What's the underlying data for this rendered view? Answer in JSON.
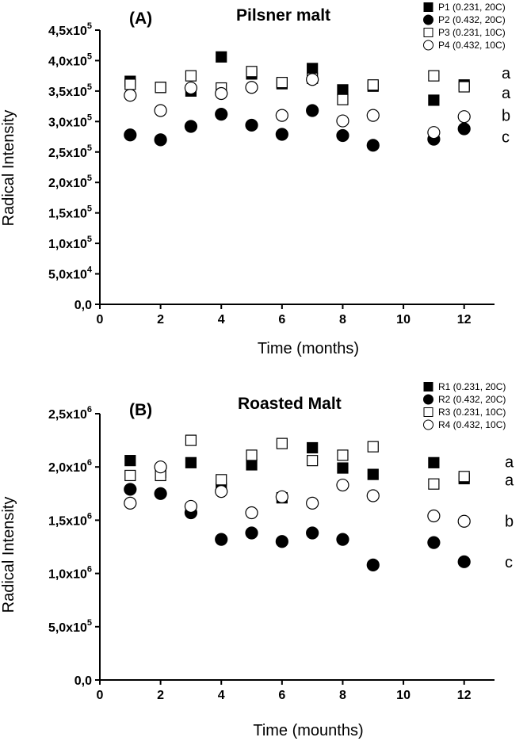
{
  "chart_data": [
    {
      "type": "scatter",
      "panel_label": "(A)",
      "title": "Pilsner malt",
      "xlabel": "Time (months)",
      "ylabel": "Radical Intensity",
      "xlim": [
        0,
        13
      ],
      "ylim": [
        0,
        450000
      ],
      "xticks": [
        0,
        2,
        4,
        6,
        8,
        10,
        12
      ],
      "yticks": [
        {
          "value": 0,
          "mant": "0,0",
          "exp": ""
        },
        {
          "value": 50000,
          "mant": "5,0x10",
          "exp": "4"
        },
        {
          "value": 100000,
          "mant": "1,0x10",
          "exp": "5"
        },
        {
          "value": 150000,
          "mant": "1,5x10",
          "exp": "5"
        },
        {
          "value": 200000,
          "mant": "2,0x10",
          "exp": "5"
        },
        {
          "value": 250000,
          "mant": "2,5x10",
          "exp": "5"
        },
        {
          "value": 300000,
          "mant": "3,0x10",
          "exp": "5"
        },
        {
          "value": 350000,
          "mant": "3,5x10",
          "exp": "5"
        },
        {
          "value": 400000,
          "mant": "4,0x10",
          "exp": "5"
        },
        {
          "value": 450000,
          "mant": "4,5x10",
          "exp": "5"
        }
      ],
      "legend_position": "top-right",
      "series": [
        {
          "name": "P1 (0.231, 20C)",
          "marker": "square",
          "filled": true,
          "x": [
            1,
            2,
            3,
            4,
            5,
            6,
            7,
            8,
            9,
            11,
            12
          ],
          "y": [
            366000,
            356000,
            350000,
            406000,
            378000,
            362000,
            387000,
            352000,
            358000,
            335000,
            360000
          ]
        },
        {
          "name": "P2 (0.432, 20C)",
          "marker": "circle",
          "filled": true,
          "x": [
            1,
            2,
            3,
            4,
            5,
            6,
            7,
            8,
            9,
            11,
            12
          ],
          "y": [
            278000,
            270000,
            292000,
            312000,
            294000,
            279000,
            318000,
            277000,
            261000,
            271000,
            288000
          ]
        },
        {
          "name": "P3 (0.231, 10C)",
          "marker": "square",
          "filled": false,
          "x": [
            1,
            2,
            3,
            4,
            5,
            6,
            7,
            8,
            9,
            11,
            12
          ],
          "y": [
            361000,
            356000,
            375000,
            355000,
            382000,
            364000,
            371000,
            336000,
            360000,
            375000,
            357000
          ]
        },
        {
          "name": "P4 (0.432, 10C)",
          "marker": "circle",
          "filled": false,
          "x": [
            1,
            2,
            3,
            4,
            5,
            6,
            7,
            8,
            9,
            11,
            12
          ],
          "y": [
            343000,
            318000,
            355000,
            346000,
            356000,
            310000,
            369000,
            301000,
            310000,
            282000,
            308000
          ]
        }
      ],
      "annotations": [
        {
          "text": "a",
          "value": 380000
        },
        {
          "text": "a",
          "value": 347000
        },
        {
          "text": "b",
          "value": 310000
        },
        {
          "text": "c",
          "value": 275000
        }
      ]
    },
    {
      "type": "scatter",
      "panel_label": "(B)",
      "title": "Roasted Malt",
      "xlabel": "Time (mounths)",
      "ylabel": "Radical Intensity",
      "xlim": [
        0,
        13
      ],
      "ylim": [
        0,
        2500000
      ],
      "xticks": [
        0,
        2,
        4,
        6,
        8,
        10,
        12
      ],
      "yticks": [
        {
          "value": 0,
          "mant": "0,0",
          "exp": ""
        },
        {
          "value": 500000,
          "mant": "5,0x10",
          "exp": "5"
        },
        {
          "value": 1000000,
          "mant": "1,0x10",
          "exp": "6"
        },
        {
          "value": 1500000,
          "mant": "1,5x10",
          "exp": "6"
        },
        {
          "value": 2000000,
          "mant": "2,0x10",
          "exp": "6"
        },
        {
          "value": 2500000,
          "mant": "2,5x10",
          "exp": "6"
        }
      ],
      "legend_position": "top-right",
      "series": [
        {
          "name": "R1 (0.231, 20C)",
          "marker": "square",
          "filled": true,
          "x": [
            1,
            2,
            3,
            4,
            5,
            6,
            7,
            8,
            9,
            11,
            12
          ],
          "y": [
            2060000,
            1950000,
            2040000,
            1800000,
            2020000,
            1710000,
            2180000,
            1990000,
            1930000,
            2040000,
            1890000
          ]
        },
        {
          "name": "R2 (0.432, 20C)",
          "marker": "circle",
          "filled": true,
          "x": [
            1,
            2,
            3,
            4,
            5,
            6,
            7,
            8,
            9,
            11,
            12
          ],
          "y": [
            1790000,
            1750000,
            1570000,
            1320000,
            1380000,
            1300000,
            1380000,
            1320000,
            1080000,
            1290000,
            1110000
          ]
        },
        {
          "name": "R3 (0.231, 10C)",
          "marker": "square",
          "filled": false,
          "x": [
            1,
            2,
            3,
            4,
            5,
            6,
            7,
            8,
            9,
            11,
            12
          ],
          "y": [
            1920000,
            1920000,
            2250000,
            1880000,
            2110000,
            2220000,
            2060000,
            2110000,
            2190000,
            1840000,
            1910000
          ]
        },
        {
          "name": "R4 (0.432, 10C)",
          "marker": "circle",
          "filled": false,
          "x": [
            1,
            2,
            3,
            4,
            5,
            6,
            7,
            8,
            9,
            11,
            12
          ],
          "y": [
            1660000,
            2000000,
            1630000,
            1770000,
            1570000,
            1720000,
            1660000,
            1830000,
            1730000,
            1540000,
            1490000
          ]
        }
      ],
      "annotations": [
        {
          "text": "a",
          "value": 2050000
        },
        {
          "text": "a",
          "value": 1880000
        },
        {
          "text": "b",
          "value": 1490000
        },
        {
          "text": "c",
          "value": 1110000
        }
      ]
    }
  ]
}
